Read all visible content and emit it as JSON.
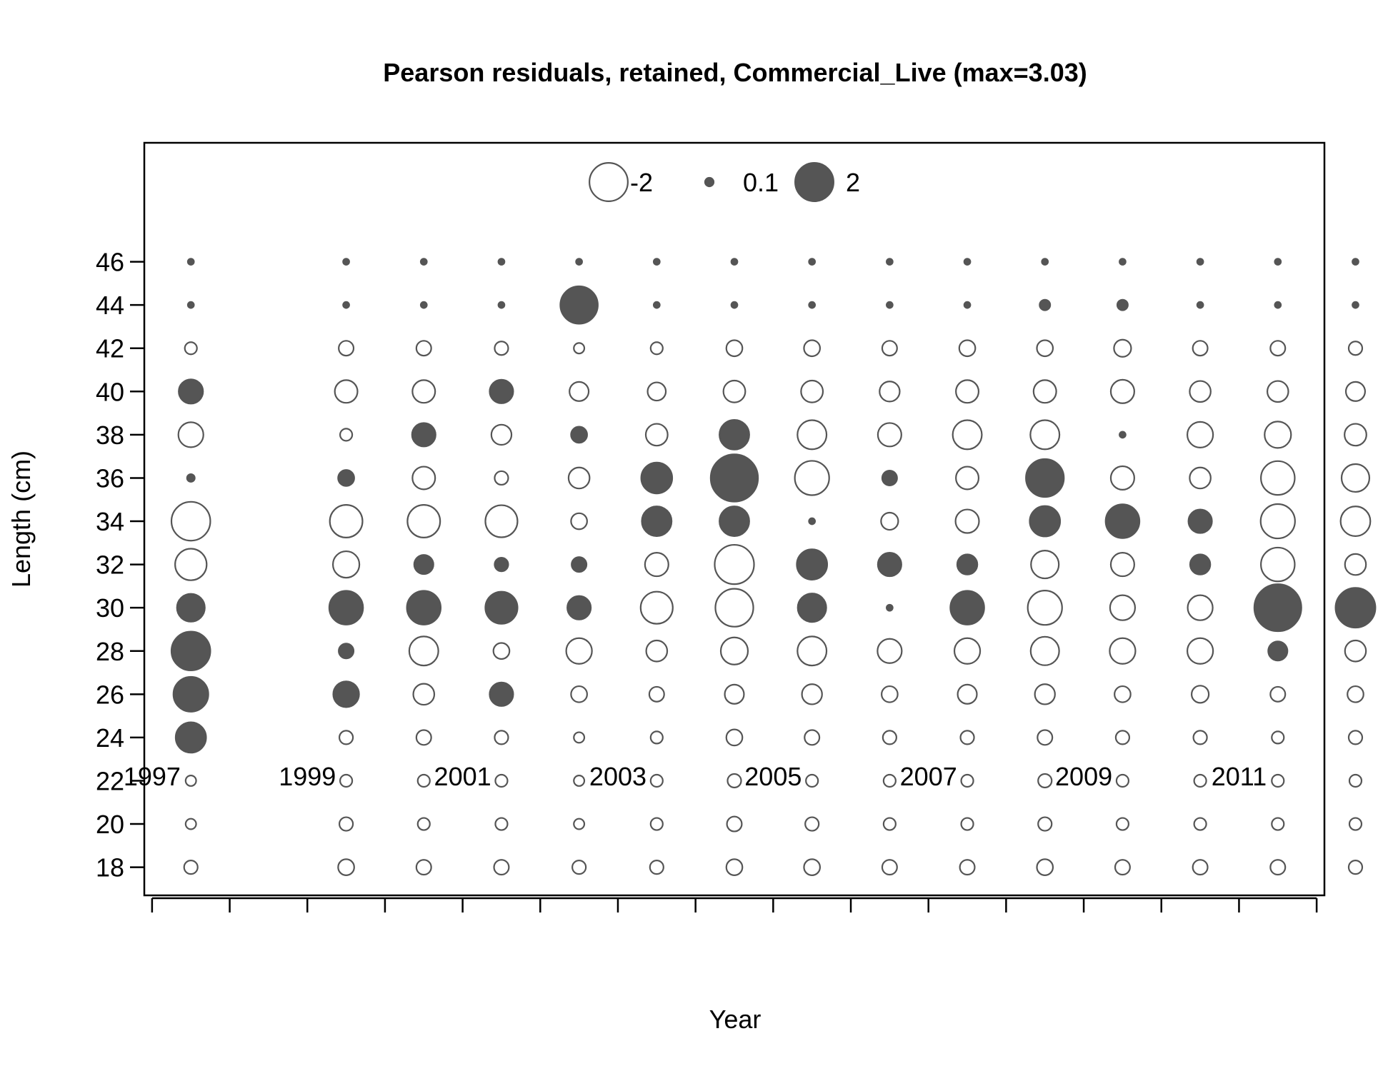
{
  "chart_data": {
    "type": "scatter",
    "title": "Pearson residuals, retained, Commercial_Live (max=3.03)",
    "xlabel": "Year",
    "ylabel": "Length (cm)",
    "xlim": [
      1996.9,
      2012.1
    ],
    "ylim": [
      16.7,
      51.5
    ],
    "x_tick_labels": [
      "1997",
      "1999",
      "2001",
      "2003",
      "2005",
      "2007",
      "2009",
      "2011"
    ],
    "x_minor_ticks": [
      1997,
      1998,
      1999,
      2000,
      2001,
      2002,
      2003,
      2004,
      2005,
      2006,
      2007,
      2008,
      2009,
      2010,
      2011,
      2012
    ],
    "y_ticks": [
      18,
      20,
      22,
      24,
      26,
      28,
      30,
      32,
      34,
      36,
      38,
      40,
      42,
      44,
      46
    ],
    "y_tick_labels": [
      "18",
      "20",
      "22",
      "24",
      "26",
      "28",
      "30",
      "32",
      "34",
      "36",
      "38",
      "40",
      "42",
      "44",
      "46"
    ],
    "grid": false,
    "max_residual": 3.03,
    "legend": {
      "placement": "top",
      "entries": [
        {
          "label": "-2",
          "value": -2
        },
        {
          "label": "0.1",
          "value": 0.1
        },
        {
          "label": "2",
          "value": 2
        }
      ]
    },
    "colors": {
      "positive_fill": "#555555",
      "negative_fill": "#ffffff",
      "stroke": "#555555"
    },
    "years": [
      1997.5,
      1999.5,
      2000.5,
      2001.5,
      2002.5,
      2003.5,
      2004.5,
      2005.5,
      2006.5,
      2007.5,
      2008.5,
      2009.5,
      2010.5,
      2011.5,
      2012.5
    ],
    "lengths": [
      18,
      20,
      22,
      24,
      26,
      28,
      30,
      32,
      34,
      36,
      38,
      40,
      42,
      44,
      46
    ],
    "residuals": [
      [
        -0.25,
        -0.15,
        -0.15,
        1.25,
        1.65,
        2.05,
        1.05,
        -1.35,
        -2.05,
        0.08,
        -0.85,
        0.8,
        -0.2,
        0.05,
        0.05
      ],
      [
        -0.35,
        -0.25,
        -0.2,
        -0.25,
        0.9,
        0.3,
        1.55,
        -0.95,
        -1.45,
        0.35,
        -0.2,
        -0.7,
        -0.3,
        0.05,
        0.05
      ],
      [
        -0.3,
        -0.2,
        -0.2,
        -0.3,
        -0.6,
        -1.15,
        1.55,
        0.5,
        -1.45,
        -0.7,
        0.75,
        -0.7,
        -0.3,
        0.05,
        0.05
      ],
      [
        -0.3,
        -0.2,
        -0.2,
        -0.25,
        0.75,
        -0.35,
        1.4,
        0.25,
        -1.4,
        -0.25,
        -0.55,
        0.75,
        -0.25,
        0.05,
        0.05
      ],
      [
        -0.25,
        -0.15,
        -0.15,
        -0.15,
        -0.35,
        -0.9,
        0.75,
        0.3,
        -0.35,
        -0.6,
        0.35,
        -0.5,
        -0.15,
        1.9,
        0.05
      ],
      [
        -0.25,
        -0.2,
        -0.2,
        -0.2,
        -0.3,
        -0.6,
        -1.4,
        -0.75,
        1.2,
        1.3,
        -0.65,
        -0.45,
        -0.2,
        0.05,
        0.05
      ],
      [
        -0.35,
        -0.3,
        -0.25,
        -0.35,
        -0.5,
        -1.0,
        -1.95,
        -2.1,
        1.2,
        3.03,
        1.2,
        -0.65,
        -0.35,
        0.05,
        0.05
      ],
      [
        -0.35,
        -0.25,
        -0.2,
        -0.3,
        -0.55,
        -1.15,
        1.1,
        1.25,
        0.05,
        -1.6,
        -1.15,
        -0.65,
        -0.35,
        0.05,
        0.05
      ],
      [
        -0.3,
        -0.2,
        -0.2,
        -0.25,
        -0.35,
        -0.8,
        0.05,
        0.75,
        -0.4,
        0.3,
        -0.75,
        -0.55,
        -0.3,
        0.05,
        0.05
      ],
      [
        -0.3,
        -0.2,
        -0.2,
        -0.25,
        -0.5,
        -0.9,
        1.55,
        0.55,
        -0.75,
        -0.7,
        -1.15,
        -0.7,
        -0.35,
        0.05,
        0.05
      ],
      [
        -0.35,
        -0.25,
        -0.25,
        -0.3,
        -0.55,
        -1.1,
        -1.6,
        -1.05,
        1.25,
        1.95,
        -1.15,
        -0.7,
        -0.35,
        0.15,
        0.05
      ],
      [
        -0.3,
        -0.2,
        -0.2,
        -0.25,
        -0.35,
        -0.9,
        -0.85,
        -0.75,
        1.55,
        -0.75,
        0.05,
        -0.75,
        -0.4,
        0.15,
        0.05
      ],
      [
        -0.3,
        -0.2,
        -0.2,
        -0.25,
        -0.4,
        -0.9,
        -0.85,
        0.55,
        0.75,
        -0.6,
        -0.9,
        -0.6,
        -0.3,
        0.05,
        0.05
      ],
      [
        -0.3,
        -0.2,
        -0.2,
        -0.2,
        -0.3,
        0.5,
        3.0,
        -1.55,
        -1.6,
        -1.55,
        -0.95,
        -0.6,
        -0.3,
        0.05,
        0.05
      ],
      [
        -0.25,
        -0.2,
        -0.2,
        -0.25,
        -0.35,
        -0.6,
        2.15,
        -0.6,
        -1.2,
        -1.05,
        -0.65,
        -0.5,
        -0.25,
        0.05,
        0.05
      ]
    ]
  }
}
